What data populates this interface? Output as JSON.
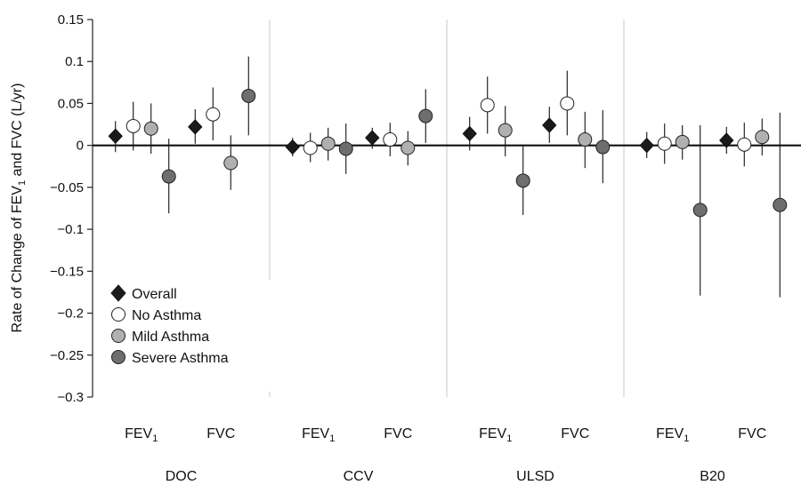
{
  "chart_data": {
    "type": "scatter",
    "ylabel_main": "Rate of Change of FEV",
    "ylabel_sub": "1",
    "ylabel_rest": " and FVC (L/yr)",
    "ylim": [
      -0.3,
      0.15
    ],
    "yticks": [
      {
        "v": 0.15,
        "label": "0.15"
      },
      {
        "v": 0.1,
        "label": "0.1"
      },
      {
        "v": 0.05,
        "label": "0.05"
      },
      {
        "v": 0,
        "label": "0"
      },
      {
        "v": -0.05,
        "label": "−0.05"
      },
      {
        "v": -0.1,
        "label": "−0.1"
      },
      {
        "v": -0.15,
        "label": "−0.15"
      },
      {
        "v": -0.2,
        "label": "−0.2"
      },
      {
        "v": -0.25,
        "label": "−0.25"
      },
      {
        "v": -0.3,
        "label": "−0.3"
      }
    ],
    "groups": [
      "DOC",
      "CCV",
      "ULSD",
      "B20"
    ],
    "measures": [
      {
        "main": "FEV",
        "sub": "1"
      },
      {
        "main": "FVC",
        "sub": ""
      }
    ],
    "grid": "vertical separators between fuel groups",
    "legend_position": "bottom-left",
    "series": [
      {
        "name": "Overall",
        "marker": "diamond",
        "fill": "#1a1a1a",
        "points": [
          {
            "group": "DOC",
            "measure": "FEV1",
            "y": 0.011,
            "lo": -0.008,
            "hi": 0.029
          },
          {
            "group": "DOC",
            "measure": "FVC",
            "y": 0.022,
            "lo": 0.002,
            "hi": 0.043
          },
          {
            "group": "CCV",
            "measure": "FEV1",
            "y": -0.002,
            "lo": -0.013,
            "hi": 0.009
          },
          {
            "group": "CCV",
            "measure": "FVC",
            "y": 0.009,
            "lo": -0.004,
            "hi": 0.021
          },
          {
            "group": "ULSD",
            "measure": "FEV1",
            "y": 0.014,
            "lo": -0.006,
            "hi": 0.034
          },
          {
            "group": "ULSD",
            "measure": "FVC",
            "y": 0.024,
            "lo": 0.003,
            "hi": 0.046
          },
          {
            "group": "B20",
            "measure": "FEV1",
            "y": 0.0,
            "lo": -0.015,
            "hi": 0.016
          },
          {
            "group": "B20",
            "measure": "FVC",
            "y": 0.006,
            "lo": -0.01,
            "hi": 0.022
          }
        ]
      },
      {
        "name": "No Asthma",
        "marker": "circle",
        "fill": "#ffffff",
        "points": [
          {
            "group": "DOC",
            "measure": "FEV1",
            "y": 0.023,
            "lo": -0.006,
            "hi": 0.052
          },
          {
            "group": "DOC",
            "measure": "FVC",
            "y": 0.037,
            "lo": 0.006,
            "hi": 0.069
          },
          {
            "group": "CCV",
            "measure": "FEV1",
            "y": -0.003,
            "lo": -0.02,
            "hi": 0.015
          },
          {
            "group": "CCV",
            "measure": "FVC",
            "y": 0.007,
            "lo": -0.013,
            "hi": 0.027
          },
          {
            "group": "ULSD",
            "measure": "FEV1",
            "y": 0.048,
            "lo": 0.014,
            "hi": 0.082
          },
          {
            "group": "ULSD",
            "measure": "FVC",
            "y": 0.05,
            "lo": 0.012,
            "hi": 0.089
          },
          {
            "group": "B20",
            "measure": "FEV1",
            "y": 0.002,
            "lo": -0.022,
            "hi": 0.026
          },
          {
            "group": "B20",
            "measure": "FVC",
            "y": 0.001,
            "lo": -0.025,
            "hi": 0.027
          }
        ]
      },
      {
        "name": "Mild Asthma",
        "marker": "circle",
        "fill": "#b0b0b0",
        "points": [
          {
            "group": "DOC",
            "measure": "FEV1",
            "y": 0.02,
            "lo": -0.01,
            "hi": 0.05
          },
          {
            "group": "DOC",
            "measure": "FVC",
            "y": -0.021,
            "lo": -0.053,
            "hi": 0.012
          },
          {
            "group": "CCV",
            "measure": "FEV1",
            "y": 0.002,
            "lo": -0.018,
            "hi": 0.021
          },
          {
            "group": "CCV",
            "measure": "FVC",
            "y": -0.003,
            "lo": -0.024,
            "hi": 0.017
          },
          {
            "group": "ULSD",
            "measure": "FEV1",
            "y": 0.018,
            "lo": -0.013,
            "hi": 0.047
          },
          {
            "group": "ULSD",
            "measure": "FVC",
            "y": 0.007,
            "lo": -0.027,
            "hi": 0.04
          },
          {
            "group": "B20",
            "measure": "FEV1",
            "y": 0.004,
            "lo": -0.017,
            "hi": 0.024
          },
          {
            "group": "B20",
            "measure": "FVC",
            "y": 0.01,
            "lo": -0.012,
            "hi": 0.032
          }
        ]
      },
      {
        "name": "Severe Asthma",
        "marker": "circle",
        "fill": "#6e6e6e",
        "points": [
          {
            "group": "DOC",
            "measure": "FEV1",
            "y": -0.037,
            "lo": -0.081,
            "hi": 0.008
          },
          {
            "group": "DOC",
            "measure": "FVC",
            "y": 0.059,
            "lo": 0.012,
            "hi": 0.106
          },
          {
            "group": "CCV",
            "measure": "FEV1",
            "y": -0.004,
            "lo": -0.034,
            "hi": 0.026
          },
          {
            "group": "CCV",
            "measure": "FVC",
            "y": 0.035,
            "lo": 0.003,
            "hi": 0.067
          },
          {
            "group": "ULSD",
            "measure": "FEV1",
            "y": -0.042,
            "lo": -0.083,
            "hi": -0.001
          },
          {
            "group": "ULSD",
            "measure": "FVC",
            "y": -0.002,
            "lo": -0.045,
            "hi": 0.042
          },
          {
            "group": "B20",
            "measure": "FEV1",
            "y": -0.077,
            "lo": -0.179,
            "hi": 0.024
          },
          {
            "group": "B20",
            "measure": "FVC",
            "y": -0.071,
            "lo": -0.181,
            "hi": 0.039
          }
        ]
      }
    ]
  }
}
